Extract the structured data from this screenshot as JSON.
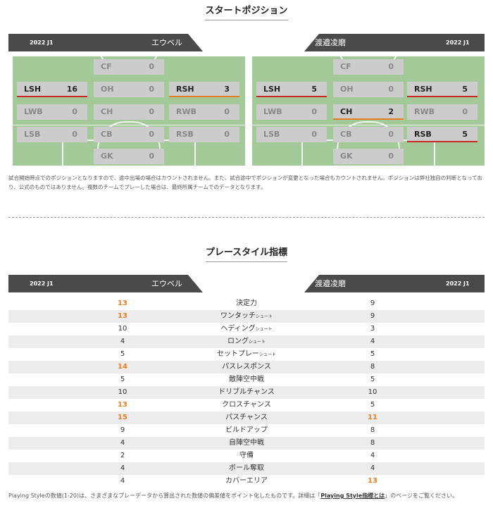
{
  "start_positions": {
    "title": "スタートポジション",
    "season": "2022 J1",
    "left_team": "エウベル",
    "right_team": "渡邉凌磨",
    "left": {
      "CF": {
        "label": "CF",
        "value": "0"
      },
      "LSH": {
        "label": "LSH",
        "value": "16"
      },
      "OH": {
        "label": "OH",
        "value": "0"
      },
      "RSH": {
        "label": "RSH",
        "value": "3"
      },
      "LWB": {
        "label": "LWB",
        "value": "0"
      },
      "CH": {
        "label": "CH",
        "value": "0"
      },
      "RWB": {
        "label": "RWB",
        "value": "0"
      },
      "LSB": {
        "label": "LSB",
        "value": "0"
      },
      "CB": {
        "label": "CB",
        "value": "0"
      },
      "RSB": {
        "label": "RSB",
        "value": "0"
      },
      "GK": {
        "label": "GK",
        "value": "0"
      }
    },
    "right": {
      "CF": {
        "label": "CF",
        "value": "0"
      },
      "LSH": {
        "label": "LSH",
        "value": "5"
      },
      "OH": {
        "label": "OH",
        "value": "0"
      },
      "RSH": {
        "label": "RSH",
        "value": "5"
      },
      "LWB": {
        "label": "LWB",
        "value": "0"
      },
      "CH": {
        "label": "CH",
        "value": "2"
      },
      "RWB": {
        "label": "RWB",
        "value": "0"
      },
      "LSB": {
        "label": "LSB",
        "value": "0"
      },
      "CB": {
        "label": "CB",
        "value": "0"
      },
      "RSB": {
        "label": "RSB",
        "value": "5"
      },
      "GK": {
        "label": "GK",
        "value": "0"
      }
    },
    "note": "試合開始時点でのポジションとなりますので、途中出場の場合はカウントされません。また、試合途中でポジションが変更となった場合もカウントされません。ポジションは弊社独自の判断となっており、公式のものではありません。複数のチームでプレーした場合は、最終所属チームでのデータとなります。"
  },
  "play_style": {
    "title": "プレースタイル指標",
    "season": "2022 J1",
    "left_team": "エウベル",
    "right_team": "渡邉凌磨",
    "rows": [
      {
        "name": "決定力",
        "sub": "",
        "left": "13",
        "right": "9",
        "left_hl": true,
        "right_hl": false
      },
      {
        "name": "ワンタッチ",
        "sub": "シュート",
        "left": "13",
        "right": "9",
        "left_hl": true,
        "right_hl": false
      },
      {
        "name": "ヘディング",
        "sub": "シュート",
        "left": "10",
        "right": "3",
        "left_hl": false,
        "right_hl": false
      },
      {
        "name": "ロング",
        "sub": "シュート",
        "left": "4",
        "right": "4",
        "left_hl": false,
        "right_hl": false
      },
      {
        "name": "セットプレー",
        "sub": "シュート",
        "left": "5",
        "right": "5",
        "left_hl": false,
        "right_hl": false
      },
      {
        "name": "パスレスポンス",
        "sub": "",
        "left": "14",
        "right": "8",
        "left_hl": true,
        "right_hl": false
      },
      {
        "name": "敵陣空中戦",
        "sub": "",
        "left": "5",
        "right": "5",
        "left_hl": false,
        "right_hl": false
      },
      {
        "name": "ドリブルチャンス",
        "sub": "",
        "left": "10",
        "right": "10",
        "left_hl": false,
        "right_hl": false
      },
      {
        "name": "クロスチャンス",
        "sub": "",
        "left": "13",
        "right": "5",
        "left_hl": true,
        "right_hl": false
      },
      {
        "name": "パスチャンス",
        "sub": "",
        "left": "15",
        "right": "11",
        "left_hl": true,
        "right_hl": true
      },
      {
        "name": "ビルドアップ",
        "sub": "",
        "left": "9",
        "right": "8",
        "left_hl": false,
        "right_hl": false
      },
      {
        "name": "自陣空中戦",
        "sub": "",
        "left": "4",
        "right": "8",
        "left_hl": false,
        "right_hl": false
      },
      {
        "name": "守備",
        "sub": "",
        "left": "2",
        "right": "4",
        "left_hl": false,
        "right_hl": false
      },
      {
        "name": "ボール奪取",
        "sub": "",
        "left": "4",
        "right": "4",
        "left_hl": false,
        "right_hl": false
      },
      {
        "name": "カバーエリア",
        "sub": "",
        "left": "4",
        "right": "13",
        "left_hl": false,
        "right_hl": true
      }
    ],
    "note_prefix": "Playing Styleの数値(1-20)は、さまざまなプレーデータから算出された数値の偏差値をポイント化したものです。詳細は「",
    "note_link": "Playing Style指標とは",
    "note_suffix": "」のページをご覧ください。"
  },
  "colors": {
    "highlight": "#e67e22",
    "header_bg": "#4a4a4a",
    "pitch": "#a3c998",
    "active_line": "#c62828"
  }
}
